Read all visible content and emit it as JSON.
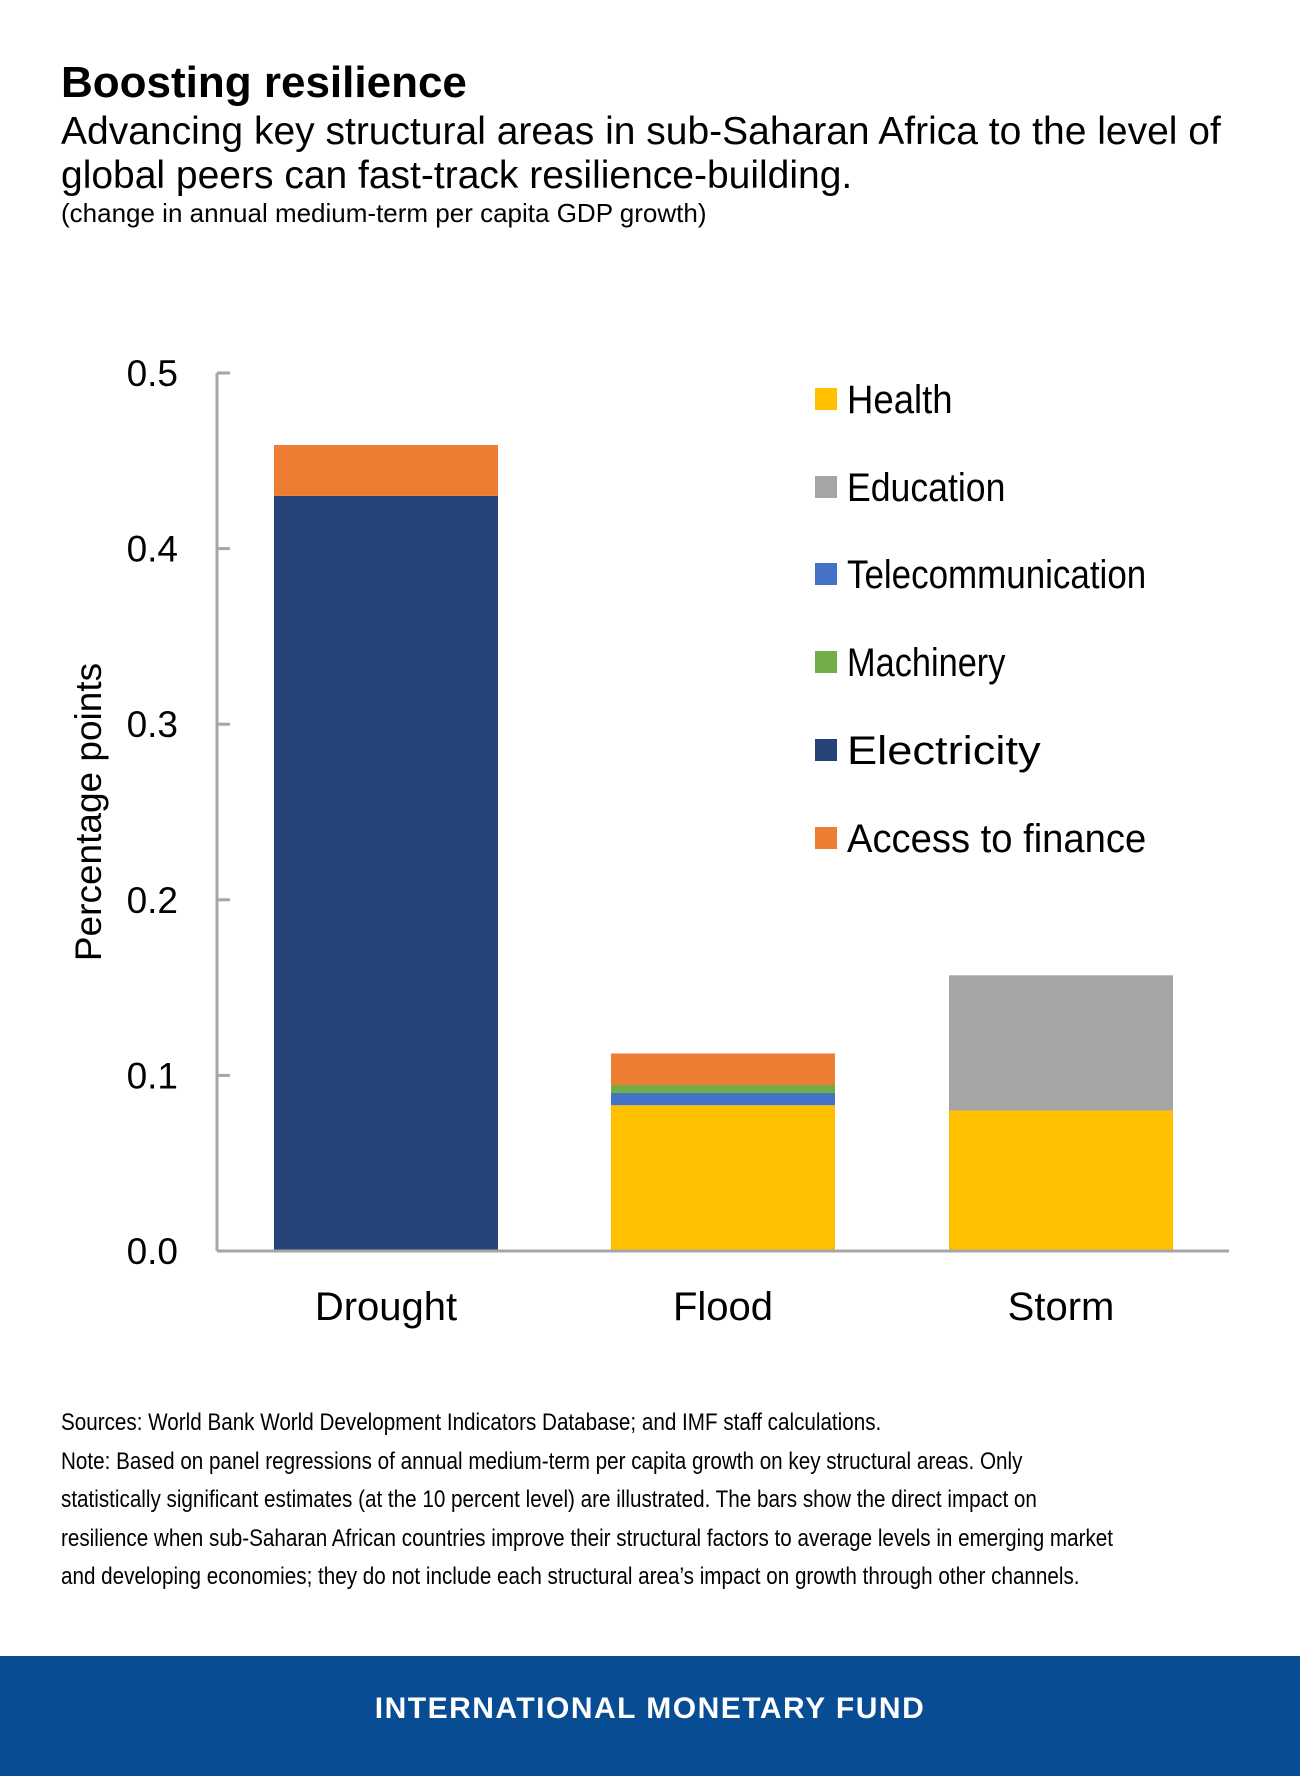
{
  "header": {
    "title": "Boosting resilience",
    "subtitle": "Advancing key structural areas in sub-Saharan Africa to the level of global peers can fast-track resilience-building.",
    "unit": "(change in annual medium-term per capita GDP growth)"
  },
  "chart_data": {
    "type": "bar",
    "stacked": true,
    "categories": [
      "Drought",
      "Flood",
      "Storm"
    ],
    "ylabel": "Percentage points",
    "ylim": [
      0,
      0.5
    ],
    "yticks": [
      "0.0",
      "0.1",
      "0.2",
      "0.3",
      "0.4",
      "0.5"
    ],
    "grid": false,
    "legend_placement": "top-right",
    "series": [
      {
        "name": "Health",
        "color": "#ffc000",
        "values": [
          0,
          0.083,
          0.08
        ]
      },
      {
        "name": "Education",
        "color": "#a5a5a5",
        "values": [
          0,
          0,
          0.077
        ]
      },
      {
        "name": "Telecommunication",
        "color": "#4472c4",
        "values": [
          0,
          0.007,
          0
        ]
      },
      {
        "name": "Machinery",
        "color": "#70ad47",
        "values": [
          0,
          0.0045,
          0
        ]
      },
      {
        "name": "Electricity",
        "color": "#264478",
        "values": [
          0.43,
          0,
          0
        ]
      },
      {
        "name": "Access to finance",
        "color": "#ed7d31",
        "values": [
          0.029,
          0.018,
          0
        ]
      }
    ]
  },
  "notes": {
    "sources": "Sources: World Bank World Development Indicators Database; and IMF staff calculations.",
    "lines": [
      "Note: Based on panel regressions of annual medium-term per capita growth on key structural areas. Only",
      "statistically significant estimates (at the 10 percent level) are illustrated. The bars show the direct impact on",
      "resilience when sub-Saharan African countries improve their structural factors to average levels in emerging market",
      "and developing economies; they do not include each structural area’s impact on growth through other channels."
    ]
  },
  "footer": {
    "text": "INTERNATIONAL MONETARY FUND",
    "color": "#084c94"
  }
}
